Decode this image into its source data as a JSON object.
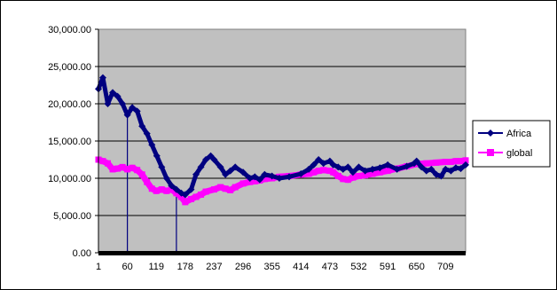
{
  "chart_data": {
    "type": "line",
    "title": "",
    "xlabel": "",
    "ylabel": "",
    "ylim": [
      0,
      30000
    ],
    "y_ticks": [
      "0.00",
      "5,000.00",
      "10,000.00",
      "15,000.00",
      "20,000.00",
      "25,000.00",
      "30,000.00"
    ],
    "x_tick_labels": [
      "1",
      "60",
      "119",
      "178",
      "237",
      "296",
      "355",
      "414",
      "473",
      "532",
      "591",
      "650",
      "709"
    ],
    "xlim": [
      1,
      750
    ],
    "grid": "horizontal",
    "legend_position": "right",
    "plot_background": "#c0c0c0",
    "series": [
      {
        "name": "Africa",
        "color": "#000080",
        "marker": "diamond",
        "x": [
          1,
          10,
          20,
          30,
          40,
          50,
          60,
          70,
          80,
          90,
          100,
          110,
          120,
          130,
          140,
          150,
          160,
          170,
          178,
          190,
          200,
          210,
          220,
          230,
          237,
          250,
          260,
          270,
          280,
          296,
          310,
          320,
          330,
          340,
          355,
          370,
          390,
          414,
          430,
          440,
          450,
          460,
          473,
          480,
          490,
          500,
          510,
          520,
          532,
          545,
          560,
          575,
          591,
          610,
          630,
          645,
          650,
          660,
          670,
          680,
          690,
          700,
          709,
          720,
          730,
          740,
          750
        ],
        "y": [
          22000,
          23500,
          20000,
          21500,
          21000,
          20000,
          18500,
          19500,
          19000,
          17000,
          16000,
          14500,
          13000,
          11500,
          10000,
          9000,
          8500,
          8000,
          7800,
          8500,
          10500,
          11500,
          12500,
          13000,
          12500,
          11500,
          10500,
          11000,
          11500,
          10800,
          10000,
          10200,
          9800,
          10500,
          10300,
          10000,
          10200,
          10600,
          11200,
          11800,
          12500,
          12000,
          12300,
          11800,
          11500,
          11200,
          11500,
          10800,
          11500,
          11000,
          11200,
          11400,
          11800,
          11200,
          11600,
          12000,
          12300,
          11500,
          11000,
          11200,
          10500,
          10300,
          11200,
          11000,
          11400,
          11300,
          11800
        ]
      },
      {
        "name": "global",
        "color": "#ff00ff",
        "marker": "square",
        "x": [
          1,
          10,
          20,
          30,
          40,
          50,
          60,
          70,
          80,
          90,
          100,
          110,
          119,
          130,
          140,
          150,
          160,
          170,
          178,
          190,
          200,
          210,
          220,
          237,
          250,
          260,
          270,
          280,
          296,
          310,
          320,
          330,
          340,
          355,
          370,
          390,
          414,
          430,
          440,
          450,
          460,
          473,
          480,
          490,
          500,
          510,
          520,
          532,
          545,
          560,
          575,
          591,
          610,
          630,
          650,
          670,
          690,
          709,
          720,
          730,
          740,
          750
        ],
        "y": [
          12500,
          12300,
          12000,
          11200,
          11300,
          11500,
          11200,
          11400,
          11100,
          10500,
          9500,
          8600,
          8300,
          8500,
          8300,
          8500,
          8000,
          7500,
          6800,
          7200,
          7500,
          7800,
          8200,
          8500,
          8800,
          8600,
          8400,
          8800,
          9300,
          9500,
          9600,
          9700,
          9900,
          10000,
          10200,
          10300,
          10500,
          10600,
          10800,
          11000,
          11100,
          11000,
          10800,
          10300,
          9900,
          9800,
          10100,
          10300,
          10400,
          10600,
          10800,
          11000,
          11300,
          11600,
          11900,
          12000,
          12100,
          12200,
          12200,
          12300,
          12300,
          12400
        ]
      }
    ],
    "drop_lines": [
      {
        "series": "Africa",
        "x": 60,
        "y_from": 18500,
        "y_to": 0
      },
      {
        "series": "Africa",
        "x": 160,
        "y_from": 8500,
        "y_to": 0
      }
    ]
  }
}
